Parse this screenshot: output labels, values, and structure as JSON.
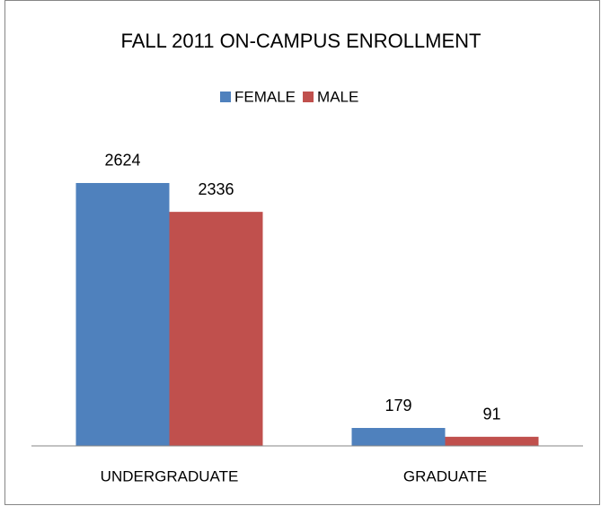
{
  "chart_data": {
    "type": "bar",
    "title": "FALL 2011 ON-CAMPUS ENROLLMENT",
    "categories": [
      "UNDERGRADUATE",
      "GRADUATE"
    ],
    "series": [
      {
        "name": "FEMALE",
        "color": "#4f81bd",
        "values": [
          2624,
          179
        ]
      },
      {
        "name": "MALE",
        "color": "#c0504d",
        "values": [
          2336,
          91
        ]
      }
    ],
    "ylim": [
      0,
      3000
    ],
    "legend": "top"
  }
}
